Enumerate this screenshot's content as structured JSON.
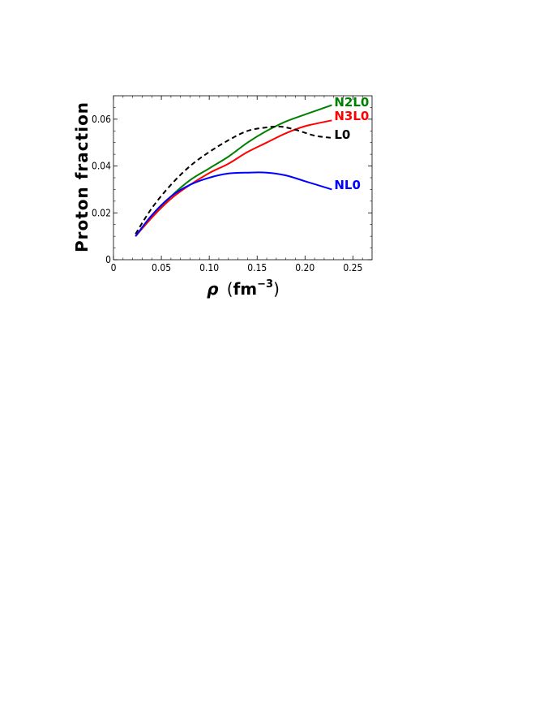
{
  "chart_data": {
    "type": "line",
    "xlabel": {
      "symbol": "ρ",
      "unit_base": "fm",
      "unit_exp": "−3"
    },
    "ylabel": "Proton fraction",
    "xlim": [
      0,
      0.27
    ],
    "ylim": [
      0,
      0.07
    ],
    "xticks": [
      0,
      0.05,
      0.1,
      0.15,
      0.2,
      0.25
    ],
    "xtick_labels": [
      "0",
      "0.05",
      "0.10",
      "0.15",
      "0.20",
      "0.25"
    ],
    "yticks": [
      0,
      0.02,
      0.04,
      0.06
    ],
    "ytick_labels": [
      "0",
      "0.02",
      "0.04",
      "0.06"
    ],
    "grid": false,
    "legend": "none (inline labels at line ends)",
    "series": [
      {
        "name": "N2L0",
        "color": "#008000",
        "style": "solid",
        "x": [
          0.023,
          0.04,
          0.06,
          0.08,
          0.1,
          0.12,
          0.14,
          0.16,
          0.18,
          0.2,
          0.228
        ],
        "y": [
          0.01,
          0.018,
          0.027,
          0.034,
          0.039,
          0.044,
          0.05,
          0.055,
          0.059,
          0.062,
          0.066
        ]
      },
      {
        "name": "N3L0",
        "color": "#ff0000",
        "style": "solid",
        "x": [
          0.023,
          0.04,
          0.06,
          0.08,
          0.1,
          0.12,
          0.14,
          0.16,
          0.18,
          0.2,
          0.228
        ],
        "y": [
          0.01,
          0.018,
          0.026,
          0.032,
          0.037,
          0.041,
          0.046,
          0.05,
          0.054,
          0.057,
          0.0595
        ]
      },
      {
        "name": "L0",
        "color": "#000000",
        "style": "dashed",
        "x": [
          0.023,
          0.04,
          0.06,
          0.08,
          0.1,
          0.12,
          0.14,
          0.16,
          0.175,
          0.19,
          0.21,
          0.228
        ],
        "y": [
          0.011,
          0.022,
          0.032,
          0.04,
          0.046,
          0.051,
          0.055,
          0.0565,
          0.0568,
          0.0555,
          0.053,
          0.052
        ]
      },
      {
        "name": "NL0",
        "color": "#0000ff",
        "style": "solid",
        "x": [
          0.023,
          0.04,
          0.06,
          0.08,
          0.1,
          0.12,
          0.14,
          0.16,
          0.18,
          0.2,
          0.228
        ],
        "y": [
          0.01,
          0.019,
          0.027,
          0.032,
          0.035,
          0.0368,
          0.0372,
          0.0372,
          0.036,
          0.0335,
          0.03
        ]
      }
    ]
  }
}
